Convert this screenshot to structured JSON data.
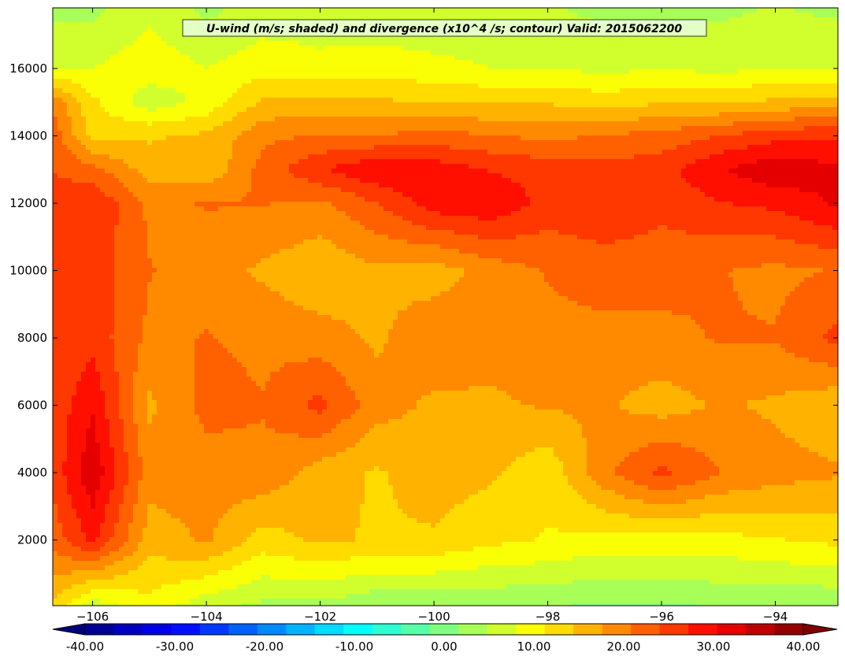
{
  "chart_data": {
    "type": "heatmap",
    "title": "U-wind (m/s; shaded) and divergence (x10^4 /s; contour) Valid: 2015062200",
    "xlabel": "",
    "ylabel": "",
    "xlim": [
      -106.7,
      -92.9
    ],
    "ylim": [
      50,
      17800
    ],
    "x_ticks": [
      -106,
      -104,
      -102,
      -100,
      -98,
      -96,
      -94
    ],
    "x_tick_labels": [
      "−106",
      "−104",
      "−102",
      "−100",
      "−98",
      "−96",
      "−94"
    ],
    "y_ticks": [
      2000,
      4000,
      6000,
      8000,
      10000,
      12000,
      14000,
      16000
    ],
    "y_tick_labels": [
      "2000",
      "4000",
      "6000",
      "8000",
      "10000",
      "12000",
      "14000",
      "16000"
    ],
    "grid": false,
    "colorbar": {
      "orientation": "horizontal",
      "placement": "bottom",
      "min": -40,
      "max": 40,
      "step": 3.2,
      "extend": "both",
      "tick_values": [
        -40,
        -30,
        -20,
        -10,
        0,
        10,
        20,
        30,
        40
      ],
      "tick_labels": [
        "-40.00",
        "-30.00",
        "-20.00",
        "-10.00",
        "0.00",
        "10.00",
        "20.00",
        "30.00",
        "40.00"
      ]
    },
    "field_grid": {
      "x": [
        -106.7,
        -106,
        -105,
        -104,
        -103,
        -102,
        -101,
        -100,
        -99,
        -98,
        -97,
        -96,
        -95,
        -94,
        -92.9
      ],
      "y": [
        50,
        2000,
        4000,
        6000,
        8000,
        10000,
        12000,
        13000,
        14000,
        15000,
        16000,
        17800
      ],
      "z": [
        [
          14,
          6,
          10,
          6,
          4,
          4,
          2,
          2,
          2,
          2,
          1,
          1,
          2,
          2,
          2
        ],
        [
          22,
          28,
          16,
          18,
          13,
          15,
          14,
          14,
          12,
          11,
          10,
          10,
          10,
          11,
          12
        ],
        [
          25,
          33,
          19,
          19,
          20,
          16,
          14,
          16,
          15,
          12,
          20,
          25,
          21,
          19,
          18
        ],
        [
          25,
          30,
          17,
          22,
          21,
          25,
          19,
          17,
          17,
          18,
          18,
          16,
          18,
          17,
          15
        ],
        [
          24,
          26,
          20,
          21,
          20,
          19,
          17,
          20,
          19,
          20,
          20,
          20,
          21,
          21,
          25
        ],
        [
          25,
          26,
          21,
          19,
          17,
          15,
          17,
          16,
          19,
          21,
          22,
          22,
          21,
          20,
          21
        ],
        [
          25,
          27,
          20,
          21,
          21,
          20,
          24,
          29,
          30,
          26,
          27,
          25,
          27,
          28,
          31
        ],
        [
          24,
          22,
          16,
          15,
          22,
          27,
          30,
          29,
          27,
          26,
          25,
          26,
          30,
          33,
          31
        ],
        [
          23,
          13,
          14,
          15,
          20,
          21,
          21,
          22,
          21,
          20,
          21,
          22,
          24,
          26,
          27
        ],
        [
          20,
          12,
          6,
          9,
          15,
          15,
          15,
          14,
          14,
          14,
          13,
          14,
          14,
          15,
          16
        ],
        [
          8,
          8,
          10,
          8,
          10,
          9,
          10,
          9,
          8,
          8,
          7,
          8,
          7,
          8,
          8
        ],
        [
          4,
          4,
          7,
          4,
          6,
          6,
          5,
          5,
          5,
          5,
          4,
          4,
          4,
          5,
          4
        ]
      ]
    }
  }
}
